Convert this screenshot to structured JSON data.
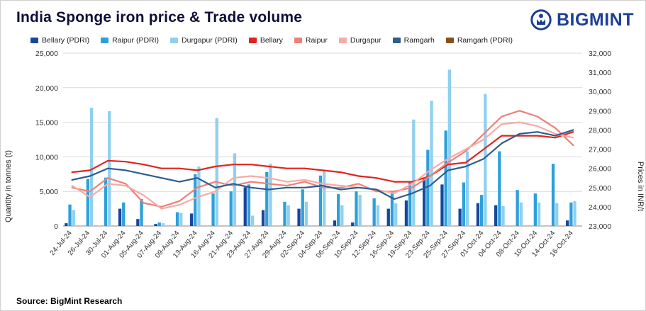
{
  "header": {
    "title": "India Sponge iron price & Trade volume",
    "brand": "BIGMINT",
    "brand_color": "#1d3f94"
  },
  "source": "Source: BigMint Research",
  "chart_data": {
    "type": "bar",
    "subtype": "combo-bar-line",
    "title": "India Sponge iron price & Trade volume",
    "grid": true,
    "legend_position": "top",
    "legend": [
      "Bellary (PDRI)",
      "Raipur (PDRI)",
      "Durgapur (PDRI)",
      "Bellary",
      "Raipur",
      "Durgapur",
      "Ramgarh",
      "Ramgarh (PDRI)"
    ],
    "categories": [
      "24-Jul-24",
      "26-Jul-24",
      "30-Jul-24",
      "01-Aug-24",
      "05-Aug-24",
      "07-Aug-24",
      "09-Aug-24",
      "13-Aug-24",
      "16-Aug-24",
      "21-Aug-24",
      "23-Aug-24",
      "27-Aug-24",
      "29-Aug-24",
      "02-Sep-24",
      "04-Sep-24",
      "06-Sep-24",
      "10-Sep-24",
      "12-Sep-24",
      "16-Sep-24",
      "19-Sep-24",
      "23-Sep-24",
      "25-Sep-24",
      "27-Sep-24",
      "01-Oct-24",
      "04-Oct-24",
      "08-Oct-24",
      "10-Oct-24",
      "14-Oct-24",
      "16-Oct-24"
    ],
    "bar_series": [
      {
        "name": "Bellary (PDRI)",
        "color": "#17479e",
        "values": [
          400,
          0,
          0,
          2500,
          1000,
          300,
          0,
          1800,
          0,
          0,
          5600,
          2300,
          0,
          2500,
          0,
          800,
          500,
          0,
          2500,
          3700,
          6800,
          6000,
          2500,
          3300,
          3000,
          0,
          0,
          0,
          800
        ]
      },
      {
        "name": "Raipur (PDRI)",
        "color": "#2da0da",
        "values": [
          3100,
          6800,
          7000,
          3400,
          3900,
          500,
          2000,
          7500,
          4700,
          5000,
          6000,
          7800,
          3500,
          5300,
          7300,
          4600,
          5000,
          4000,
          5000,
          6500,
          11000,
          13800,
          6300,
          4500,
          10800,
          5200,
          4700,
          9000,
          3400
        ]
      },
      {
        "name": "Durgapur (PDRI)",
        "color": "#8fd0f0",
        "values": [
          2300,
          17100,
          16600,
          0,
          0,
          400,
          1900,
          8600,
          15600,
          10500,
          1500,
          9000,
          3000,
          3500,
          8100,
          3000,
          4500,
          3000,
          3300,
          15400,
          18100,
          22600,
          10800,
          19100,
          2900,
          3400,
          3400,
          3300,
          3600
        ]
      },
      {
        "name": "Ramgarh (PDRI)",
        "color": "#8a4f18",
        "values": [
          null,
          null,
          null,
          null,
          null,
          null,
          null,
          null,
          null,
          null,
          null,
          null,
          null,
          null,
          null,
          null,
          null,
          null,
          null,
          null,
          null,
          null,
          null,
          null,
          null,
          null,
          null,
          null,
          null
        ]
      }
    ],
    "line_series": [
      {
        "name": "Bellary",
        "color": "#e2231a",
        "values": [
          25800,
          25900,
          26400,
          26350,
          26200,
          26000,
          26000,
          25900,
          26100,
          26200,
          26200,
          26100,
          26000,
          26000,
          25900,
          25800,
          25600,
          25500,
          25300,
          25300,
          25600,
          26200,
          26300,
          27000,
          27700,
          27700,
          27700,
          27600,
          27900
        ]
      },
      {
        "name": "Raipur",
        "color": "#f07f76",
        "values": [
          25000,
          24800,
          25500,
          25200,
          24200,
          24000,
          24300,
          25000,
          25300,
          25100,
          25300,
          25200,
          25100,
          25300,
          25000,
          25000,
          25200,
          24800,
          24800,
          25000,
          25600,
          26300,
          26900,
          27800,
          28700,
          29000,
          28700,
          28100,
          27200
        ]
      },
      {
        "name": "Durgapur",
        "color": "#f6aba5",
        "values": [
          25100,
          24500,
          25200,
          25100,
          24600,
          23900,
          24100,
          24500,
          24800,
          25500,
          25600,
          25500,
          25300,
          25400,
          25200,
          25100,
          25000,
          24900,
          24700,
          25200,
          25900,
          26500,
          27000,
          27500,
          28300,
          28400,
          28200,
          27800,
          27600
        ]
      },
      {
        "name": "Ramgarh",
        "color": "#2c5d8f",
        "values": [
          25400,
          25600,
          26000,
          25900,
          25700,
          25500,
          25300,
          25500,
          25000,
          25200,
          25000,
          24900,
          25000,
          25000,
          25100,
          24900,
          25000,
          24900,
          24400,
          24700,
          25100,
          25900,
          26100,
          26500,
          27300,
          27800,
          27900,
          27700,
          28000
        ]
      }
    ],
    "y_left": {
      "label": "Quantity in tonnes (t)",
      "min": 0,
      "max": 25000,
      "step": 5000
    },
    "y_right": {
      "label": "Prices in INR/t",
      "min": 23000,
      "max": 32000,
      "step": 1000
    }
  }
}
